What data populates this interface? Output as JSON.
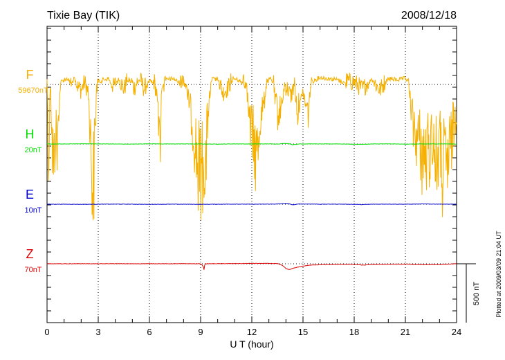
{
  "chart_data": {
    "type": "line",
    "title": "Tixie Bay (TIK)",
    "date": "2008/12/18",
    "xlabel": "U T (hour)",
    "xlim": [
      0,
      24
    ],
    "xticks": [
      "0",
      "3",
      "6",
      "9",
      "12",
      "15",
      "18",
      "21",
      "24"
    ],
    "grid": true,
    "scale_label": "500 nT",
    "plot_note": "Plotted at 2009/03/09 21:04 UT",
    "series": [
      {
        "name": "F",
        "baseline_label": "59670nT",
        "color": "#f5b000",
        "style": "saturated-noise",
        "x": [
          0.0,
          0.1,
          0.2,
          0.3,
          0.4,
          0.5,
          0.6,
          0.7,
          0.8,
          1.0,
          1.2,
          1.4,
          1.6,
          1.8,
          2.0,
          2.2,
          2.4,
          2.5,
          2.6,
          2.7,
          2.8,
          2.9,
          3.0,
          3.3,
          3.6,
          3.9,
          4.2,
          4.5,
          4.8,
          5.1,
          5.4,
          5.7,
          6.0,
          6.3,
          6.5,
          6.6,
          6.7,
          6.8,
          7.0,
          7.4,
          7.8,
          8.2,
          8.4,
          8.6,
          8.8,
          8.9,
          9.0,
          9.1,
          9.2,
          9.3,
          9.4,
          9.5,
          9.6,
          9.7,
          9.8,
          10.0,
          10.3,
          10.6,
          10.9,
          11.2,
          11.5,
          11.7,
          11.9,
          12.1,
          12.3,
          12.5,
          12.7,
          12.9,
          13.1,
          13.3,
          13.5,
          13.7,
          13.9,
          14.1,
          14.3,
          14.5,
          14.7,
          14.9,
          15.1,
          15.3,
          15.5,
          15.7,
          16.0,
          16.5,
          17.0,
          17.5,
          18.0,
          18.5,
          19.0,
          19.5,
          20.0,
          20.5,
          21.0,
          21.2,
          21.4,
          21.6,
          21.8,
          22.0,
          22.2,
          22.4,
          22.6,
          22.8,
          23.0,
          23.2,
          23.4,
          23.6,
          23.8,
          24.0
        ],
        "y": [
          20,
          -900,
          30,
          -700,
          -1100,
          -500,
          -850,
          -250,
          40,
          60,
          70,
          20,
          70,
          -20,
          -50,
          20,
          -60,
          -400,
          -900,
          -1350,
          -700,
          -60,
          40,
          60,
          70,
          -20,
          60,
          -40,
          70,
          -30,
          60,
          -40,
          70,
          20,
          -150,
          -950,
          -120,
          -40,
          60,
          70,
          30,
          -40,
          -300,
          -600,
          -900,
          -1100,
          -1000,
          -1050,
          -850,
          -1100,
          -500,
          -150,
          40,
          70,
          60,
          70,
          -70,
          -30,
          70,
          60,
          20,
          -60,
          -500,
          -700,
          -900,
          -400,
          -250,
          40,
          70,
          20,
          -350,
          -300,
          0,
          -40,
          -100,
          10,
          -350,
          -20,
          -200,
          -350,
          40,
          60,
          80,
          70,
          60,
          30,
          20,
          -40,
          60,
          -50,
          70,
          60,
          70,
          50,
          -450,
          -600,
          -700,
          -850,
          -900,
          -800,
          -600,
          -1000,
          -700,
          -1100,
          -1000,
          -850,
          -550,
          -300
        ]
      },
      {
        "name": "H",
        "baseline_label": "20nT",
        "color": "#00dd00",
        "style": "line",
        "x": [
          0,
          1,
          2,
          3,
          4,
          5,
          6,
          7,
          8,
          9,
          10,
          11,
          12,
          13,
          13.5,
          13.8,
          14.0,
          14.2,
          14.4,
          14.6,
          14.8,
          15.0,
          15.5,
          16,
          17,
          18,
          18.5,
          19,
          20,
          21,
          22,
          23,
          24
        ],
        "y": [
          0,
          0,
          2,
          1,
          0,
          -1,
          2,
          0,
          1,
          0,
          -1,
          1,
          0,
          1,
          0,
          3,
          5,
          2,
          -6,
          -3,
          2,
          0,
          1,
          0,
          1,
          -2,
          -3,
          0,
          1,
          -1,
          0,
          1,
          0
        ]
      },
      {
        "name": "E",
        "baseline_label": "10nT",
        "color": "#0000cc",
        "style": "line",
        "x": [
          0,
          1,
          2,
          3,
          4,
          5,
          6,
          7,
          8,
          9,
          10,
          11,
          12,
          13,
          13.5,
          13.8,
          14.0,
          14.2,
          14.4,
          14.6,
          14.8,
          15.0,
          15.5,
          16,
          17,
          18,
          18.5,
          19,
          20,
          21,
          22,
          23,
          24
        ],
        "y": [
          0,
          0,
          -1,
          0,
          1,
          0,
          -1,
          0,
          0,
          -1,
          0,
          1,
          0,
          1,
          2,
          4,
          8,
          2,
          -5,
          -2,
          3,
          1,
          2,
          0,
          1,
          -1,
          -3,
          0,
          1,
          0,
          2,
          1,
          0
        ]
      },
      {
        "name": "Z",
        "baseline_label": "70nT",
        "color": "#dd0000",
        "style": "line",
        "x": [
          0,
          1,
          2,
          3,
          4,
          5,
          6,
          7,
          8,
          9,
          9.15,
          9.2,
          9.25,
          10,
          11,
          12,
          13,
          13.5,
          13.8,
          14.0,
          14.2,
          14.5,
          14.8,
          15.0,
          15.5,
          16,
          17,
          18,
          18.5,
          19,
          20,
          21,
          22,
          23,
          24
        ],
        "y": [
          0,
          0,
          1,
          0,
          1,
          0,
          1,
          0,
          1,
          0,
          -20,
          -50,
          0,
          1,
          2,
          3,
          3,
          2,
          -15,
          -40,
          -50,
          -35,
          -25,
          -20,
          -10,
          -8,
          -5,
          -5,
          -12,
          -6,
          -4,
          -3,
          -8,
          -6,
          0
        ]
      }
    ]
  }
}
